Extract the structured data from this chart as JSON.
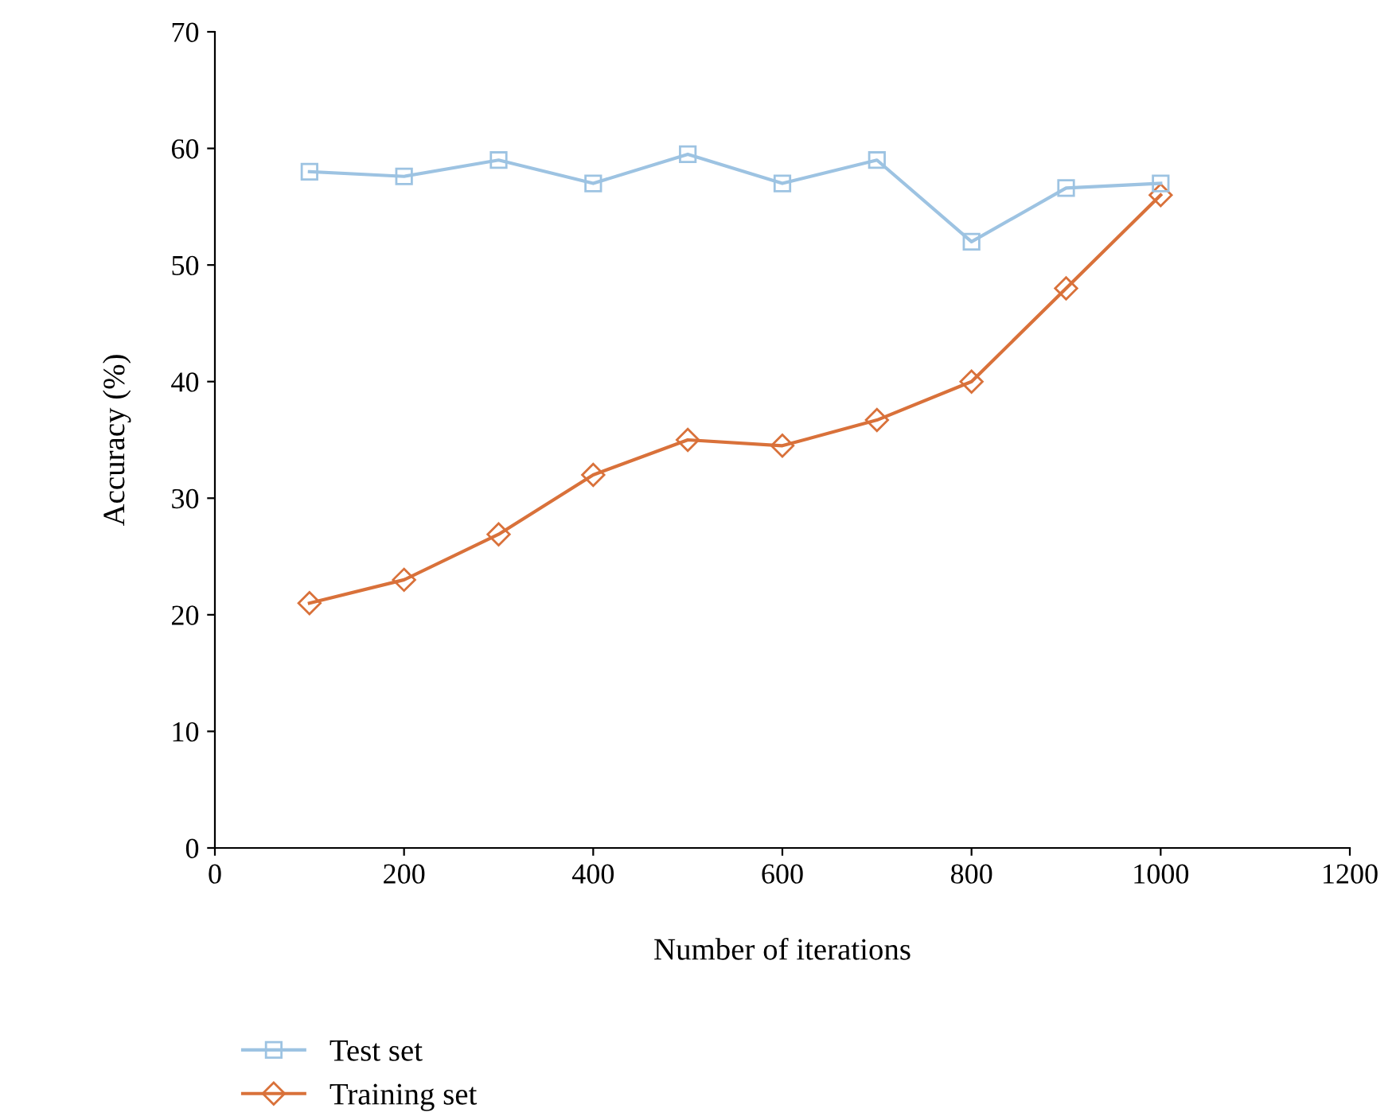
{
  "chart_data": {
    "type": "line",
    "xlabel": "Number of iterations",
    "ylabel": "Accuracy (%)",
    "x": [
      100,
      200,
      300,
      400,
      500,
      600,
      700,
      800,
      900,
      1000
    ],
    "series": [
      {
        "name": "Test set",
        "color": "#9dc3e2",
        "marker": "square",
        "values": [
          58,
          57.6,
          59,
          57,
          59.5,
          57,
          59,
          52,
          56.6,
          57
        ]
      },
      {
        "name": "Training set",
        "color": "#d9713a",
        "marker": "diamond",
        "values": [
          21,
          23,
          26.9,
          32,
          35,
          34.5,
          36.7,
          40,
          48,
          56
        ]
      }
    ],
    "xlim": [
      0,
      1200
    ],
    "xticks": [
      0,
      200,
      400,
      600,
      800,
      1000,
      1200
    ],
    "ylim": [
      0,
      70
    ],
    "yticks": [
      0,
      10,
      20,
      30,
      40,
      50,
      60,
      70
    ],
    "grid": false,
    "legend": "bottom left",
    "line_style": "solid"
  }
}
